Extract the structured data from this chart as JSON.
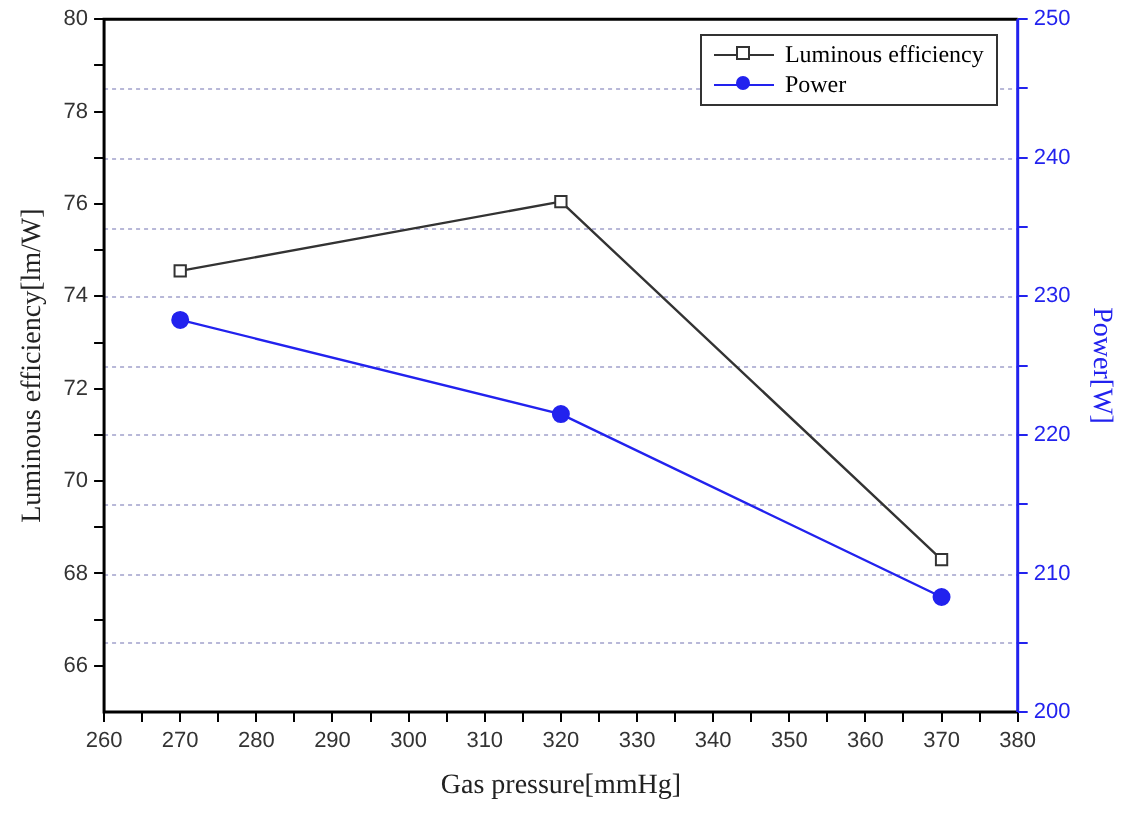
{
  "chart_data": {
    "type": "line",
    "xlabel": "Gas pressure[mmHg]",
    "ylabel": "Luminous efficiency[lm/W]",
    "y2label": "Power[W]",
    "x": [
      270,
      320,
      370
    ],
    "series": [
      {
        "name": "Luminous efficiency",
        "color": "#333333",
        "values": [
          74.55,
          76.05,
          68.3
        ],
        "marker": "square"
      },
      {
        "name": "Power",
        "color": "#2222ee",
        "values": [
          228.3,
          221.5,
          208.3
        ],
        "axis": "y2",
        "marker": "circle"
      }
    ],
    "xlim": [
      260,
      380
    ],
    "xticks": [
      260,
      {
        "value": 265,
        "label": null
      },
      270,
      {
        "value": 275,
        "label": null
      },
      280,
      {
        "value": 285,
        "label": null
      },
      290,
      {
        "value": 295,
        "label": null
      },
      300,
      {
        "value": 305,
        "label": null
      },
      310,
      {
        "value": 315,
        "label": null
      },
      320,
      {
        "value": 325,
        "label": null
      },
      330,
      {
        "value": 335,
        "label": null
      },
      340,
      {
        "value": 345,
        "label": null
      },
      350,
      {
        "value": 355,
        "label": null
      },
      360,
      {
        "value": 365,
        "label": null
      },
      370,
      {
        "value": 375,
        "label": null
      },
      380
    ],
    "ylim": [
      65,
      80
    ],
    "yticks": [
      66,
      {
        "value": 67,
        "label": null
      },
      68,
      {
        "value": 69,
        "label": null
      },
      70,
      {
        "value": 71,
        "label": null
      },
      72,
      {
        "value": 73,
        "label": null
      },
      74,
      {
        "value": 75,
        "label": null
      },
      76,
      {
        "value": 77,
        "label": null
      },
      78,
      {
        "value": 79,
        "label": null
      },
      80
    ],
    "y2lim": [
      200,
      250
    ],
    "y2ticks": [
      200,
      {
        "value": 205,
        "label": null
      },
      210,
      {
        "value": 215,
        "label": null
      },
      220,
      {
        "value": 225,
        "label": null
      },
      230,
      {
        "value": 235,
        "label": null
      },
      240,
      {
        "value": 245,
        "label": null
      },
      250
    ],
    "grid": "y",
    "legend": "top right",
    "line_style": "solid"
  }
}
